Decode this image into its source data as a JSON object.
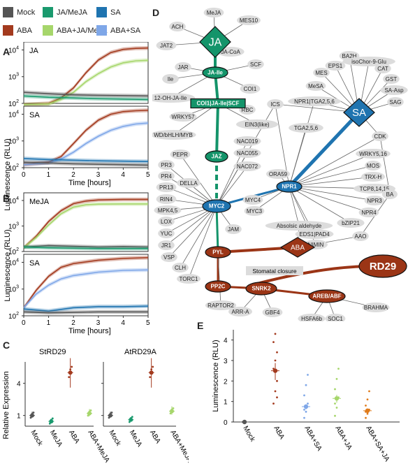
{
  "legend": {
    "items": [
      {
        "label": "Mock",
        "color": "#555555"
      },
      {
        "label": "JA/MeJA",
        "color": "#1a9a6e"
      },
      {
        "label": "SA",
        "color": "#1f74b0"
      },
      {
        "label": "ABA",
        "color": "#a33a1e"
      },
      {
        "label": "ABA+JA/MeJA",
        "color": "#a6d66b"
      },
      {
        "label": "ABA+SA",
        "color": "#7fa7e8"
      }
    ]
  },
  "panels": {
    "A": "A",
    "B": "B",
    "C": "C",
    "D": "D",
    "E": "E"
  },
  "chart_data": [
    {
      "type": "line",
      "panel": "A",
      "subplot_title": "JA",
      "xlabel": "",
      "ylabel": "",
      "xlim": [
        0,
        5
      ],
      "ylim_log10": [
        2,
        4.3
      ],
      "series": [
        {
          "name": "ABA",
          "color": "#a33a1e",
          "x": [
            0,
            1,
            1.5,
            2,
            2.5,
            3,
            3.5,
            4,
            4.5,
            5
          ],
          "y": [
            90,
            100,
            160,
            380,
            1400,
            4200,
            8000,
            10500,
            11500,
            11800
          ]
        },
        {
          "name": "ABA+JA/MeJA",
          "color": "#a6d66b",
          "x": [
            0,
            1,
            1.5,
            2,
            2.5,
            3,
            3.5,
            4,
            4.5,
            5
          ],
          "y": [
            90,
            95,
            140,
            260,
            650,
            1300,
            2300,
            3300,
            3900,
            4100
          ]
        },
        {
          "name": "Mock",
          "color": "#555555",
          "x": [
            0,
            1,
            2,
            3,
            4,
            5
          ],
          "y": [
            260,
            230,
            210,
            200,
            195,
            190
          ]
        },
        {
          "name": "JA/MeJA",
          "color": "#1a9a6e",
          "x": [
            0,
            1,
            2,
            3,
            4,
            5
          ],
          "y": [
            190,
            170,
            160,
            150,
            145,
            140
          ]
        }
      ]
    },
    {
      "type": "line",
      "panel": "A",
      "subplot_title": "SA",
      "xlabel": "Time [hours]",
      "ylabel": "Luminescence (RLU)",
      "xlim": [
        0,
        5
      ],
      "ylim_log10": [
        2,
        4.3
      ],
      "xticks": [
        0,
        1,
        2,
        3,
        4,
        5
      ],
      "yticks_log10": [
        2,
        3,
        4
      ],
      "series": [
        {
          "name": "ABA",
          "color": "#a33a1e",
          "x": [
            0,
            1,
            1.5,
            2,
            2.5,
            3,
            3.5,
            4,
            4.5,
            5
          ],
          "y": [
            130,
            160,
            260,
            800,
            2500,
            6000,
            10000,
            12500,
            13500,
            14000
          ]
        },
        {
          "name": "ABA+SA",
          "color": "#7fa7e8",
          "x": [
            0,
            1,
            1.5,
            2,
            2.5,
            3,
            3.5,
            4,
            4.5,
            5
          ],
          "y": [
            130,
            150,
            210,
            380,
            800,
            1500,
            2500,
            3500,
            4300,
            4700
          ]
        },
        {
          "name": "SA",
          "color": "#1f74b0",
          "x": [
            0,
            1,
            2,
            3,
            4,
            5
          ],
          "y": [
            220,
            200,
            190,
            180,
            175,
            170
          ]
        },
        {
          "name": "Mock",
          "color": "#555555",
          "x": [
            0,
            1,
            2,
            3,
            4,
            5
          ],
          "y": [
            160,
            150,
            140,
            135,
            130,
            125
          ]
        }
      ]
    },
    {
      "type": "line",
      "panel": "B",
      "subplot_title": "MeJA",
      "xlabel": "",
      "ylabel": "",
      "xlim": [
        0,
        5
      ],
      "ylim_log10": [
        2,
        4.3
      ],
      "series": [
        {
          "name": "ABA",
          "color": "#a33a1e",
          "x": [
            0,
            0.5,
            1,
            1.5,
            2,
            2.5,
            3,
            4,
            5
          ],
          "y": [
            140,
            400,
            1500,
            4000,
            7500,
            9500,
            10500,
            11000,
            11000
          ]
        },
        {
          "name": "ABA+JA/MeJA",
          "color": "#a6d66b",
          "x": [
            0,
            0.5,
            1,
            1.5,
            2,
            2.5,
            3,
            4,
            5
          ],
          "y": [
            140,
            350,
            1100,
            3000,
            5500,
            6800,
            7200,
            7300,
            7300
          ]
        },
        {
          "name": "Mock",
          "color": "#555555",
          "x": [
            0,
            1,
            2,
            3,
            4,
            5
          ],
          "y": [
            150,
            170,
            160,
            150,
            155,
            150
          ]
        },
        {
          "name": "JA/MeJA",
          "color": "#1a9a6e",
          "x": [
            0,
            1,
            2,
            3,
            4,
            5
          ],
          "y": [
            150,
            140,
            135,
            130,
            130,
            130
          ]
        }
      ]
    },
    {
      "type": "line",
      "panel": "B",
      "subplot_title": "SA",
      "xlabel": "Time [hours]",
      "ylabel": "Luminescence (RLU)",
      "xlim": [
        0,
        5
      ],
      "ylim_log10": [
        2,
        4.3
      ],
      "xticks": [
        0,
        1,
        2,
        3,
        4,
        5
      ],
      "yticks_log10": [
        2,
        3,
        4
      ],
      "series": [
        {
          "name": "ABA",
          "color": "#a33a1e",
          "x": [
            0,
            0.5,
            1,
            1.5,
            2,
            3,
            4,
            5
          ],
          "y": [
            200,
            900,
            3000,
            6500,
            9000,
            12000,
            14000,
            15000
          ]
        },
        {
          "name": "ABA+SA",
          "color": "#7fa7e8",
          "x": [
            0,
            0.5,
            1,
            1.5,
            2,
            3,
            4,
            5
          ],
          "y": [
            200,
            650,
            1400,
            2400,
            3200,
            4300,
            5000,
            5200
          ]
        },
        {
          "name": "SA",
          "color": "#1f74b0",
          "x": [
            0,
            1,
            2,
            3,
            4,
            5
          ],
          "y": [
            180,
            150,
            200,
            220,
            220,
            230
          ]
        },
        {
          "name": "Mock",
          "color": "#555555",
          "x": [
            0,
            1,
            2,
            3,
            4,
            5
          ],
          "y": [
            140,
            130,
            135,
            140,
            140,
            140
          ]
        }
      ]
    },
    {
      "type": "scatter",
      "panel": "C",
      "subplot_title": "StRD29",
      "ylabel": "Relative Expression",
      "yticks": [
        1,
        4
      ],
      "categories": [
        "Mock",
        "MeJA",
        "ABA",
        "ABA+MeJA"
      ],
      "values": [
        1.0,
        0.45,
        5.0,
        1.2
      ],
      "colors": [
        "#555555",
        "#1a9a6e",
        "#a33a1e",
        "#a6d66b"
      ]
    },
    {
      "type": "scatter",
      "panel": "C",
      "subplot_title": "AtRD29A",
      "categories": [
        "Mock",
        "MeJA",
        "ABA",
        "ABA+MeJA"
      ],
      "values": [
        1.0,
        0.6,
        5.0,
        1.4
      ],
      "colors": [
        "#555555",
        "#1a9a6e",
        "#a33a1e",
        "#a6d66b"
      ]
    },
    {
      "type": "scatter",
      "panel": "E",
      "ylabel": "Luminescence (RLU)",
      "ylim": [
        0,
        4.5
      ],
      "yticks": [
        0,
        1,
        2,
        3,
        4
      ],
      "categories": [
        "Mock",
        "ABA",
        "ABA+SA",
        "ABA+JA",
        "ABA+SA+JA"
      ],
      "values": [
        0.0,
        2.5,
        0.75,
        1.15,
        0.55
      ],
      "colors": [
        "#555555",
        "#a33a1e",
        "#7fa7e8",
        "#a6d66b",
        "#e07b1a"
      ]
    }
  ],
  "network": {
    "hubs": {
      "JA": "JA",
      "SA": "SA",
      "ABA": "ABA",
      "RD29": "RD29",
      "JA_Ile": "JA-Ile",
      "COI1": "COI1|JA-Ile|SCF",
      "JAZ": "JAZ",
      "MYC2": "MYC2",
      "NPR1": "NPR1",
      "PYL": "PYL",
      "PP2C": "PP2C",
      "SNRK2": "SNRK2",
      "AREB": "AREB/ABF"
    },
    "nodes": [
      "MeJA",
      "MES10",
      "ACH",
      "JAT2",
      "JA-CoA",
      "JAR",
      "Ile",
      "SCF",
      "COI1",
      "12-OH-JA-Ile",
      "RBC",
      "WRKY57",
      "EIN3(like)",
      "WD/bHLH/MYB",
      "NAC019",
      "NAC055",
      "NAC072",
      "PEPR",
      "PR3",
      "PR4",
      "PR13",
      "RIN4",
      "MPK4,5",
      "DELLA",
      "LOX",
      "YUC",
      "JR1",
      "VSP",
      "CLH",
      "TORC1",
      "JAM",
      "ICS",
      "NPR1|TGA2,5,6",
      "MeSA",
      "MES",
      "EPS1",
      "BA2H",
      "isoChor-9-Glu",
      "CAT",
      "GST",
      "SA-Asp",
      "SAG",
      "TGA2,5,6",
      "CDK",
      "WRKY5,16",
      "MOS",
      "TRX-H",
      "TCP8,14,15",
      "NPR3",
      "NPR4",
      "bZIP21",
      "EDS1|PAD4",
      "NIMIN",
      "ORA59",
      "MYC4",
      "MYC3",
      "BA",
      "AAO",
      "Absolsic aldehyde",
      "RAPTOR2",
      "ARR-A",
      "GBF4",
      "HSFA6b",
      "SOC1",
      "BRAHMA"
    ],
    "labels": {
      "stomatal": "Stomatal closure"
    }
  }
}
